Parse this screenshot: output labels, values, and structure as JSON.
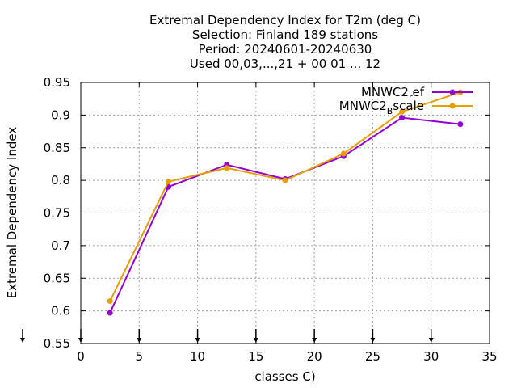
{
  "chart_data": {
    "type": "line",
    "title_lines": [
      "Extremal Dependency Index  for T2m (deg C)",
      "Selection: Finland    189 stations",
      "Period: 20240601-20240630",
      "Used 00,03,...,21 + 00 01 ... 12"
    ],
    "xlabel": "classes C)",
    "ylabel": "Extremal Dependency Index",
    "xlim": [
      0,
      35
    ],
    "ylim": [
      0.55,
      0.95
    ],
    "x_ticks": [
      0,
      5,
      10,
      15,
      20,
      25,
      30,
      35
    ],
    "y_ticks": [
      0.55,
      0.6,
      0.65,
      0.7,
      0.75,
      0.8,
      0.85,
      0.9,
      0.95
    ],
    "x_tick_labels": [
      "0",
      "5",
      "10",
      "15",
      "20",
      "25",
      "30",
      "35"
    ],
    "y_tick_labels": [
      "0.55",
      "0.6",
      "0.65",
      "0.7",
      "0.75",
      "0.8",
      "0.85",
      "0.9",
      "0.95"
    ],
    "grid": true,
    "legend_position": "top-right",
    "class_markers_x": [
      0,
      5,
      10,
      15,
      20,
      25,
      30
    ],
    "series": [
      {
        "name_main": "MNWC2",
        "name_sub": "r",
        "name_rest": "ef",
        "color": "#9400d3",
        "x": [
          2.5,
          7.5,
          12.5,
          17.5,
          22.5,
          27.5,
          32.5
        ],
        "y": [
          0.597,
          0.79,
          0.824,
          0.802,
          0.837,
          0.896,
          0.886
        ]
      },
      {
        "name_main": "MNWC2",
        "name_sub": "B",
        "name_rest": "scale",
        "color": "#e69f00",
        "x": [
          2.5,
          7.5,
          12.5,
          17.5,
          22.5,
          27.5,
          32.5
        ],
        "y": [
          0.615,
          0.798,
          0.819,
          0.8,
          0.841,
          0.905,
          0.935
        ]
      }
    ]
  }
}
